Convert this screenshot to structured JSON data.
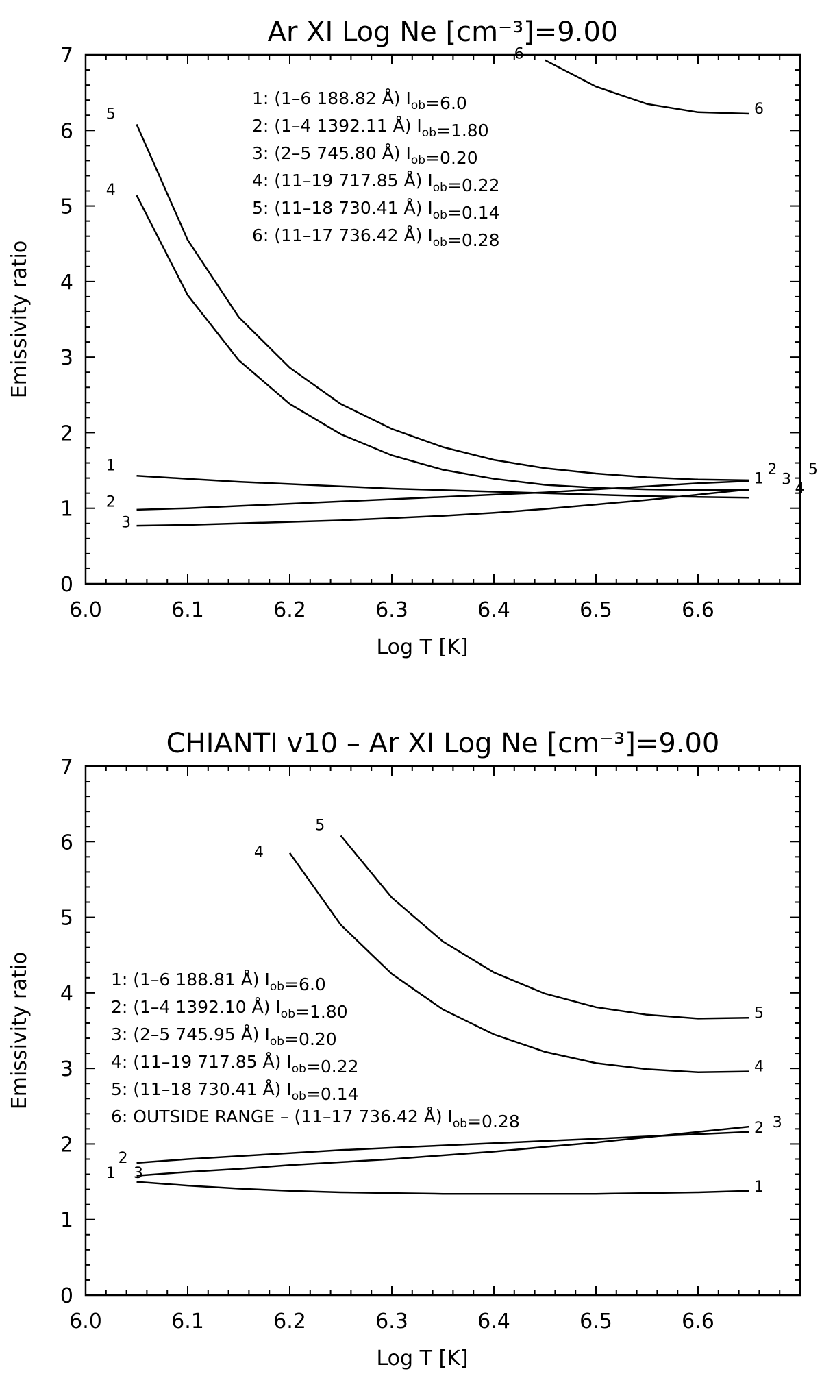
{
  "chart_data": [
    {
      "type": "line",
      "title": "Ar XI  Log Ne [cm⁻³]=9.00",
      "xlabel": "Log T [K]",
      "ylabel": "Emissivity ratio",
      "xlim": [
        6.0,
        6.7
      ],
      "ylim": [
        0,
        7
      ],
      "xticks": [
        "6.0",
        "6.1",
        "6.2",
        "6.3",
        "6.4",
        "6.5",
        "6.6"
      ],
      "yticks": [
        "0",
        "1",
        "2",
        "3",
        "4",
        "5",
        "6",
        "7"
      ],
      "legend": [
        "1:  (1–6  188.82 Å) Iob=6.0",
        "2:  (1–4  1392.11 Å) Iob=1.80",
        "3:  (2–5  745.80 Å) Iob=0.20",
        "4:  (11–19  717.85 Å) Iob=0.22",
        "5:  (11–18  730.41 Å) Iob=0.14",
        "6:  (11–17  736.42 Å) Iob=0.28"
      ],
      "series": [
        {
          "name": "1",
          "x": [
            6.05,
            6.1,
            6.15,
            6.2,
            6.25,
            6.3,
            6.35,
            6.4,
            6.45,
            6.5,
            6.55,
            6.6,
            6.65
          ],
          "values": [
            1.43,
            1.39,
            1.35,
            1.32,
            1.29,
            1.26,
            1.24,
            1.22,
            1.2,
            1.18,
            1.16,
            1.15,
            1.14
          ]
        },
        {
          "name": "2",
          "x": [
            6.05,
            6.1,
            6.15,
            6.2,
            6.25,
            6.3,
            6.35,
            6.4,
            6.45,
            6.5,
            6.55,
            6.6,
            6.65
          ],
          "values": [
            0.98,
            1.0,
            1.03,
            1.06,
            1.09,
            1.12,
            1.15,
            1.18,
            1.21,
            1.25,
            1.29,
            1.33,
            1.36
          ]
        },
        {
          "name": "3",
          "x": [
            6.05,
            6.1,
            6.15,
            6.2,
            6.25,
            6.3,
            6.35,
            6.4,
            6.45,
            6.5,
            6.55,
            6.6,
            6.65
          ],
          "values": [
            0.77,
            0.78,
            0.8,
            0.82,
            0.84,
            0.87,
            0.9,
            0.94,
            0.99,
            1.05,
            1.11,
            1.18,
            1.25
          ]
        },
        {
          "name": "4",
          "x": [
            6.05,
            6.1,
            6.15,
            6.2,
            6.25,
            6.3,
            6.35,
            6.4,
            6.45,
            6.5,
            6.55,
            6.6,
            6.65
          ],
          "values": [
            5.14,
            3.82,
            2.96,
            2.38,
            1.98,
            1.7,
            1.51,
            1.39,
            1.31,
            1.27,
            1.25,
            1.24,
            1.24
          ]
        },
        {
          "name": "5",
          "x": [
            6.05,
            6.1,
            6.15,
            6.2,
            6.25,
            6.3,
            6.35,
            6.4,
            6.45,
            6.5,
            6.55,
            6.6,
            6.65
          ],
          "values": [
            6.08,
            4.55,
            3.53,
            2.86,
            2.38,
            2.05,
            1.81,
            1.64,
            1.53,
            1.46,
            1.41,
            1.38,
            1.37
          ]
        },
        {
          "name": "6",
          "x": [
            6.45,
            6.5,
            6.55,
            6.6,
            6.65
          ],
          "values": [
            6.93,
            6.58,
            6.35,
            6.24,
            6.22
          ]
        }
      ],
      "curve_labels": {
        "left": [
          {
            "text": "6",
            "x": 6.42,
            "y": 6.95
          },
          {
            "text": "5",
            "x": 6.02,
            "y": 6.15
          },
          {
            "text": "4",
            "x": 6.02,
            "y": 5.15
          },
          {
            "text": "1",
            "x": 6.02,
            "y": 1.5
          },
          {
            "text": "2",
            "x": 6.02,
            "y": 1.02
          },
          {
            "text": "3",
            "x": 6.035,
            "y": 0.75
          }
        ],
        "right": [
          {
            "text": "6",
            "x": 6.655,
            "y": 6.22
          },
          {
            "text": "1",
            "x": 6.655,
            "y": 1.33
          },
          {
            "text": "2",
            "x": 6.668,
            "y": 1.45
          },
          {
            "text": "3",
            "x": 6.682,
            "y": 1.32
          },
          {
            "text": "4",
            "x": 6.695,
            "y": 1.2
          },
          {
            "text": "5",
            "x": 6.708,
            "y": 1.45
          }
        ]
      }
    },
    {
      "type": "line",
      "title": "CHIANTI v10 – Ar XI  Log Ne [cm⁻³]=9.00",
      "xlabel": "Log T [K]",
      "ylabel": "Emissivity ratio",
      "xlim": [
        6.0,
        6.7
      ],
      "ylim": [
        0,
        7
      ],
      "xticks": [
        "6.0",
        "6.1",
        "6.2",
        "6.3",
        "6.4",
        "6.5",
        "6.6"
      ],
      "yticks": [
        "0",
        "1",
        "2",
        "3",
        "4",
        "5",
        "6",
        "7"
      ],
      "legend": [
        "1:  (1–6  188.81 Å) Iob=6.0",
        "2:  (1–4  1392.10 Å) Iob=1.80",
        "3:  (2–5  745.95 Å) Iob=0.20",
        "4:  (11–19  717.85 Å) Iob=0.22",
        "5:  (11–18  730.41 Å) Iob=0.14",
        "6: OUTSIDE RANGE –  (11–17  736.42 Å) Iob=0.28"
      ],
      "series": [
        {
          "name": "1",
          "x": [
            6.05,
            6.1,
            6.15,
            6.2,
            6.25,
            6.3,
            6.35,
            6.4,
            6.45,
            6.5,
            6.55,
            6.6,
            6.65
          ],
          "values": [
            1.5,
            1.45,
            1.41,
            1.38,
            1.36,
            1.35,
            1.34,
            1.34,
            1.34,
            1.34,
            1.35,
            1.36,
            1.38
          ]
        },
        {
          "name": "2",
          "x": [
            6.05,
            6.1,
            6.15,
            6.2,
            6.25,
            6.3,
            6.35,
            6.4,
            6.45,
            6.5,
            6.55,
            6.6,
            6.65
          ],
          "values": [
            1.75,
            1.8,
            1.84,
            1.88,
            1.92,
            1.95,
            1.98,
            2.01,
            2.04,
            2.07,
            2.1,
            2.13,
            2.16
          ]
        },
        {
          "name": "3",
          "x": [
            6.05,
            6.1,
            6.15,
            6.2,
            6.25,
            6.3,
            6.35,
            6.4,
            6.45,
            6.5,
            6.55,
            6.6,
            6.65
          ],
          "values": [
            1.58,
            1.63,
            1.67,
            1.72,
            1.76,
            1.8,
            1.85,
            1.9,
            1.96,
            2.02,
            2.09,
            2.16,
            2.23
          ]
        },
        {
          "name": "4",
          "x": [
            6.2,
            6.25,
            6.3,
            6.35,
            6.4,
            6.45,
            6.5,
            6.55,
            6.6,
            6.65
          ],
          "values": [
            5.85,
            4.9,
            4.25,
            3.78,
            3.45,
            3.22,
            3.07,
            2.99,
            2.95,
            2.96
          ]
        },
        {
          "name": "5",
          "x": [
            6.25,
            6.3,
            6.35,
            6.4,
            6.45,
            6.5,
            6.55,
            6.6,
            6.65
          ],
          "values": [
            6.08,
            5.26,
            4.68,
            4.27,
            3.99,
            3.81,
            3.71,
            3.66,
            3.67
          ]
        }
      ],
      "curve_labels": {
        "left": [
          {
            "text": "4",
            "x": 6.165,
            "y": 5.8
          },
          {
            "text": "5",
            "x": 6.225,
            "y": 6.15
          },
          {
            "text": "1",
            "x": 6.02,
            "y": 1.55
          },
          {
            "text": "2",
            "x": 6.032,
            "y": 1.75
          },
          {
            "text": "3",
            "x": 6.047,
            "y": 1.55
          }
        ],
        "right": [
          {
            "text": "5",
            "x": 6.655,
            "y": 3.67
          },
          {
            "text": "4",
            "x": 6.655,
            "y": 2.96
          },
          {
            "text": "2",
            "x": 6.655,
            "y": 2.15
          },
          {
            "text": "3",
            "x": 6.673,
            "y": 2.22
          },
          {
            "text": "1",
            "x": 6.655,
            "y": 1.37
          }
        ]
      }
    }
  ]
}
